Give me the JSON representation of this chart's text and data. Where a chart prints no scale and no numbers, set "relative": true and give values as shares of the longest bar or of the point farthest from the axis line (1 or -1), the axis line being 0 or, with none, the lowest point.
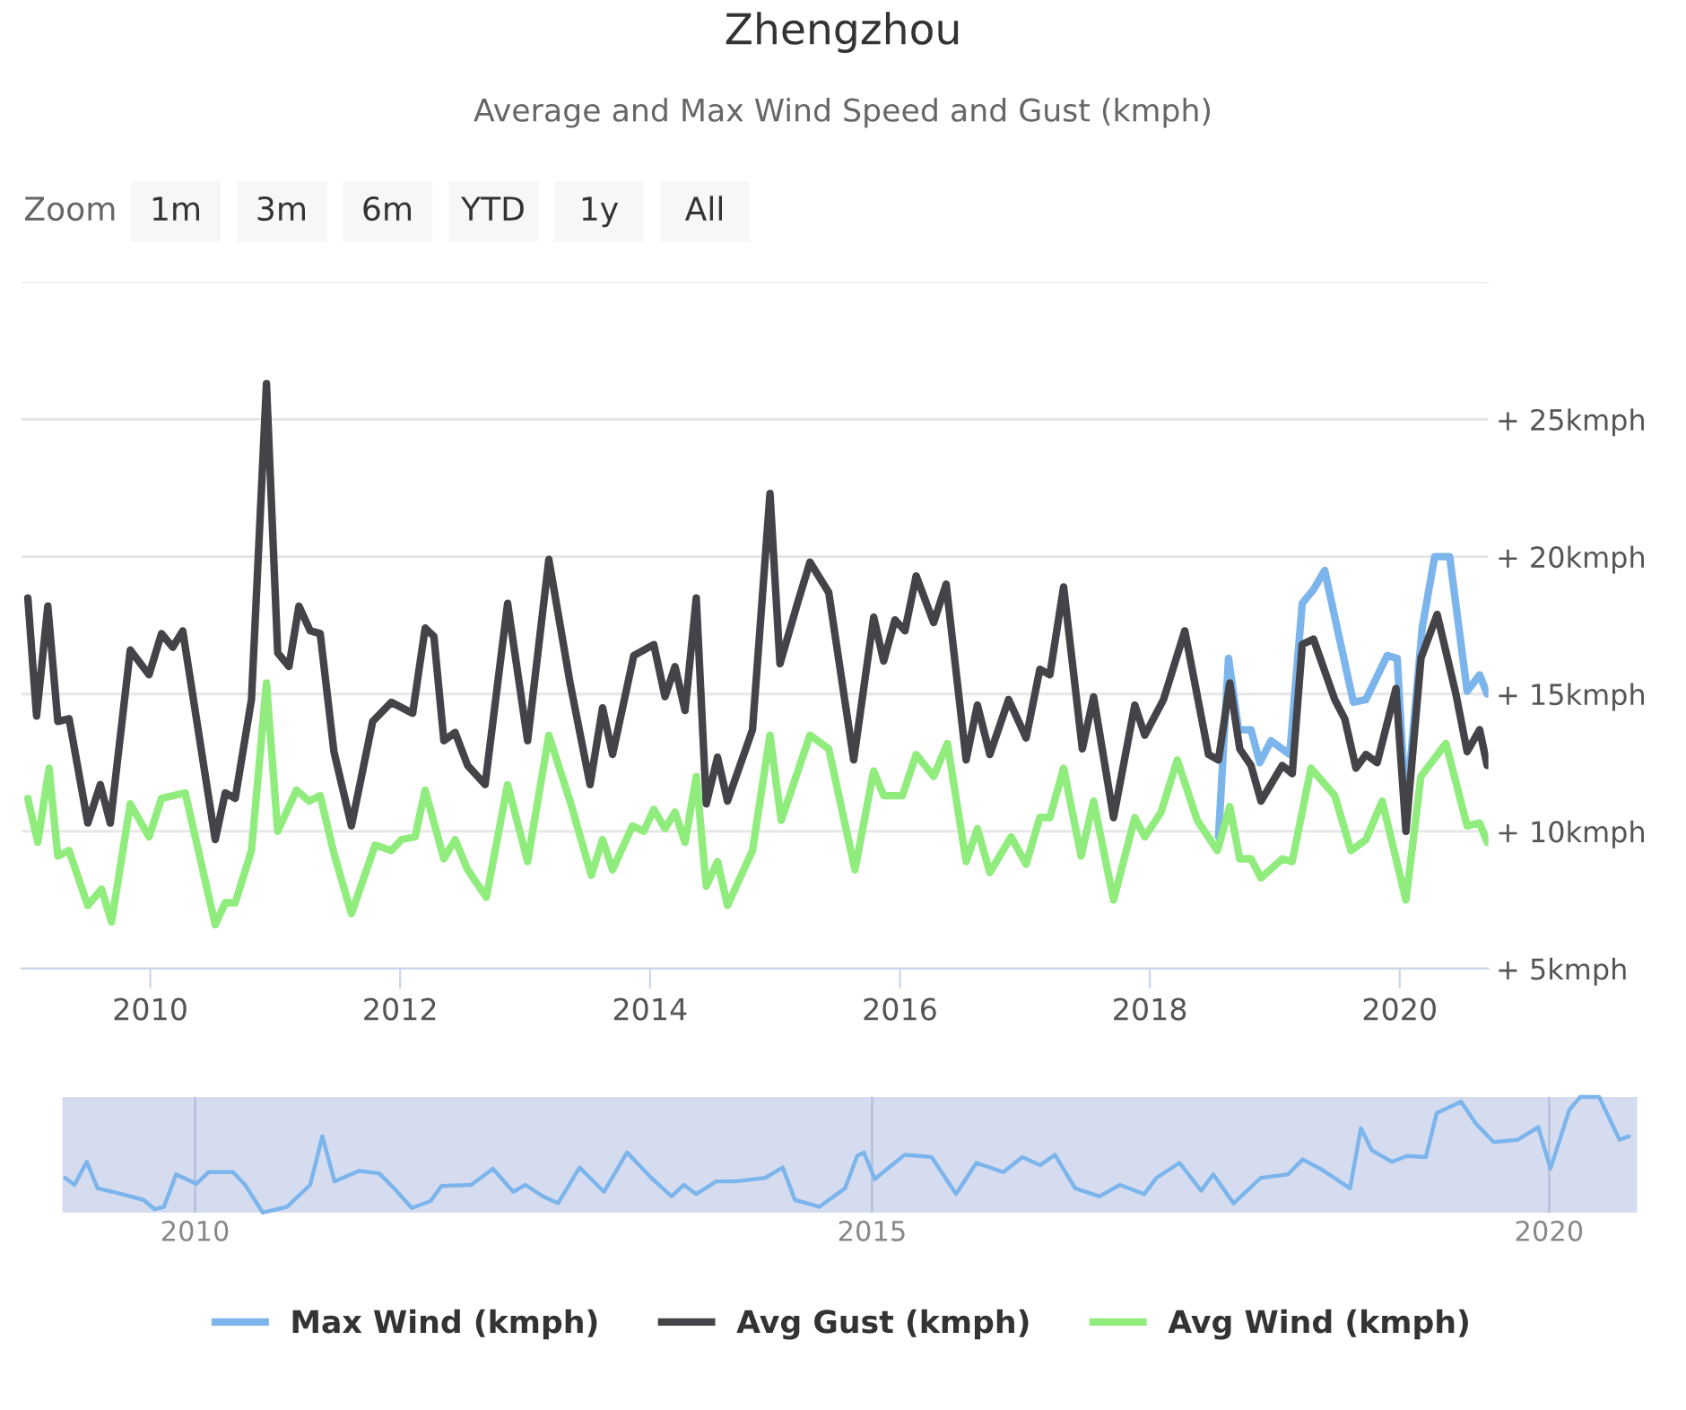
{
  "chart_data": [
    {
      "type": "line",
      "title": "Zhengzhou",
      "subtitle": "Average and Max Wind Speed and Gust (kmph)",
      "annotations": [
        "Zoom",
        "1m",
        "3m",
        "6m",
        "YTD",
        "1y",
        "All"
      ],
      "xlim": [
        2008.97,
        2020.71
      ],
      "xticks": [
        2010,
        2012,
        2014,
        2016,
        2018,
        2020
      ],
      "ylim": [
        5,
        30
      ],
      "yticks": [
        {
          "value": 5,
          "label": "+ 5kmph"
        },
        {
          "value": 10,
          "label": "+ 10kmph"
        },
        {
          "value": 15,
          "label": "+ 15kmph"
        },
        {
          "value": 20,
          "label": "+ 20kmph"
        },
        {
          "value": 25,
          "label": "+ 25kmph"
        },
        {
          "value": 30,
          "label": null
        }
      ],
      "grid": "y",
      "legend": "bottom",
      "marker": "none",
      "line_style": "solid",
      "series": [
        {
          "name": "Max Wind (kmph)",
          "color": "#7cb5ec",
          "x": [
            2018.55,
            2018.63,
            2018.71,
            2018.81,
            2018.88,
            2018.97,
            2019.12,
            2019.22,
            2019.31,
            2019.4,
            2019.48,
            2019.63,
            2019.73,
            2019.9,
            2019.98,
            2020.05,
            2020.18,
            2020.28,
            2020.4,
            2020.54,
            2020.64,
            2020.7
          ],
          "values": [
            9.8,
            16.3,
            13.7,
            13.7,
            12.5,
            13.3,
            12.8,
            18.3,
            18.8,
            19.5,
            17.8,
            14.7,
            14.8,
            16.4,
            16.3,
            10.7,
            17.4,
            20.0,
            20.0,
            15.1,
            15.7,
            15.0
          ]
        },
        {
          "name": "Avg Gust (kmph)",
          "color": "#434348",
          "x": [
            2009.02,
            2009.09,
            2009.18,
            2009.26,
            2009.35,
            2009.5,
            2009.6,
            2009.68,
            2009.84,
            2009.99,
            2010.09,
            2010.18,
            2010.26,
            2010.52,
            2010.6,
            2010.68,
            2010.81,
            2010.93,
            2011.02,
            2011.11,
            2011.19,
            2011.28,
            2011.36,
            2011.47,
            2011.61,
            2011.78,
            2011.93,
            2012.1,
            2012.2,
            2012.27,
            2012.35,
            2012.44,
            2012.54,
            2012.68,
            2012.86,
            2013.02,
            2013.19,
            2013.36,
            2013.52,
            2013.62,
            2013.7,
            2013.87,
            2014.03,
            2014.12,
            2014.2,
            2014.28,
            2014.37,
            2014.45,
            2014.54,
            2014.62,
            2014.82,
            2014.96,
            2015.04,
            2015.18,
            2015.28,
            2015.43,
            2015.63,
            2015.79,
            2015.87,
            2015.96,
            2016.04,
            2016.13,
            2016.27,
            2016.37,
            2016.53,
            2016.62,
            2016.72,
            2016.87,
            2017.01,
            2017.12,
            2017.2,
            2017.31,
            2017.46,
            2017.55,
            2017.71,
            2017.88,
            2017.96,
            2018.11,
            2018.28,
            2018.47,
            2018.55,
            2018.64,
            2018.72,
            2018.81,
            2018.89,
            2019.06,
            2019.14,
            2019.22,
            2019.31,
            2019.48,
            2019.56,
            2019.65,
            2019.73,
            2019.82,
            2019.97,
            2020.05,
            2020.17,
            2020.3,
            2020.45,
            2020.54,
            2020.64,
            2020.7
          ],
          "values": [
            18.5,
            14.2,
            18.2,
            14.0,
            14.1,
            10.3,
            11.7,
            10.3,
            16.6,
            15.7,
            17.2,
            16.7,
            17.3,
            9.7,
            11.4,
            11.2,
            14.8,
            26.3,
            16.5,
            16.0,
            18.2,
            17.3,
            17.2,
            12.9,
            10.2,
            14.0,
            14.7,
            14.3,
            17.4,
            17.1,
            13.3,
            13.6,
            12.4,
            11.7,
            18.3,
            13.3,
            19.9,
            15.4,
            11.7,
            14.5,
            12.8,
            16.4,
            16.8,
            14.9,
            16.0,
            14.4,
            18.5,
            11.0,
            12.7,
            11.1,
            13.7,
            22.3,
            16.1,
            18.3,
            19.8,
            18.7,
            12.6,
            17.8,
            16.2,
            17.7,
            17.3,
            19.3,
            17.6,
            19.0,
            12.6,
            14.6,
            12.8,
            14.8,
            13.4,
            15.9,
            15.7,
            18.9,
            13.0,
            14.9,
            10.5,
            14.6,
            13.5,
            14.8,
            17.3,
            12.8,
            12.6,
            15.4,
            13.0,
            12.4,
            11.1,
            12.4,
            12.1,
            16.8,
            17.0,
            14.8,
            14.1,
            12.3,
            12.8,
            12.5,
            15.2,
            10.0,
            16.3,
            17.9,
            15.0,
            12.9,
            13.7,
            12.4
          ]
        },
        {
          "name": "Avg Wind (kmph)",
          "color": "#90ed7d",
          "x": [
            2009.02,
            2009.1,
            2009.19,
            2009.26,
            2009.35,
            2009.5,
            2009.61,
            2009.69,
            2009.84,
            2009.99,
            2010.09,
            2010.28,
            2010.52,
            2010.6,
            2010.68,
            2010.81,
            2010.93,
            2011.02,
            2011.17,
            2011.27,
            2011.36,
            2011.47,
            2011.61,
            2011.8,
            2011.93,
            2012.01,
            2012.12,
            2012.2,
            2012.35,
            2012.44,
            2012.54,
            2012.69,
            2012.86,
            2013.02,
            2013.19,
            2013.36,
            2013.53,
            2013.62,
            2013.7,
            2013.86,
            2013.95,
            2014.03,
            2014.12,
            2014.2,
            2014.28,
            2014.37,
            2014.45,
            2014.54,
            2014.62,
            2014.82,
            2014.96,
            2015.05,
            2015.28,
            2015.43,
            2015.64,
            2015.79,
            2015.87,
            2016.02,
            2016.13,
            2016.27,
            2016.38,
            2016.53,
            2016.62,
            2016.72,
            2016.89,
            2017.01,
            2017.12,
            2017.2,
            2017.31,
            2017.45,
            2017.55,
            2017.71,
            2017.88,
            2017.96,
            2018.09,
            2018.22,
            2018.38,
            2018.54,
            2018.64,
            2018.72,
            2018.81,
            2018.89,
            2019.06,
            2019.14,
            2019.29,
            2019.48,
            2019.61,
            2019.73,
            2019.86,
            2020.05,
            2020.17,
            2020.37,
            2020.54,
            2020.64,
            2020.7
          ],
          "values": [
            11.2,
            9.6,
            12.3,
            9.1,
            9.3,
            7.3,
            7.9,
            6.7,
            11.0,
            9.8,
            11.2,
            11.4,
            6.6,
            7.4,
            7.4,
            9.3,
            15.4,
            10.0,
            11.5,
            11.1,
            11.3,
            9.2,
            7.0,
            9.5,
            9.3,
            9.7,
            9.8,
            11.5,
            9.0,
            9.7,
            8.6,
            7.6,
            11.7,
            8.9,
            13.5,
            11.1,
            8.4,
            9.7,
            8.6,
            10.2,
            10.0,
            10.8,
            10.1,
            10.7,
            9.6,
            12.0,
            8.0,
            8.9,
            7.3,
            9.3,
            13.5,
            10.4,
            13.5,
            13.0,
            8.6,
            12.2,
            11.3,
            11.3,
            12.8,
            12.0,
            13.2,
            8.9,
            10.1,
            8.5,
            9.8,
            8.8,
            10.5,
            10.5,
            12.3,
            9.1,
            11.1,
            7.5,
            10.5,
            9.8,
            10.7,
            12.6,
            10.4,
            9.3,
            10.9,
            9.0,
            9.0,
            8.3,
            9.0,
            8.9,
            12.3,
            11.3,
            9.3,
            9.7,
            11.1,
            7.5,
            12.0,
            13.2,
            10.2,
            10.3,
            9.6
          ]
        }
      ]
    },
    {
      "type": "line",
      "relative": true,
      "xlim": [
        2009.02,
        2020.65
      ],
      "xticks": [
        2010,
        2015,
        2020
      ],
      "grid": "x",
      "tick_labels": "x",
      "marker": "none",
      "series": [
        {
          "color": "#7cb5ec",
          "x": [
            2009.04,
            2009.11,
            2009.2,
            2009.28,
            2009.39,
            2009.62,
            2009.7,
            2009.77,
            2009.86,
            2010.01,
            2010.1,
            2010.28,
            2010.37,
            2010.5,
            2010.68,
            2010.85,
            2010.94,
            2011.03,
            2011.21,
            2011.36,
            2011.47,
            2011.6,
            2011.74,
            2011.82,
            2012.04,
            2012.2,
            2012.35,
            2012.44,
            2012.57,
            2012.68,
            2012.84,
            2013.02,
            2013.19,
            2013.37,
            2013.52,
            2013.61,
            2013.7,
            2013.85,
            2013.99,
            2014.21,
            2014.34,
            2014.43,
            2014.61,
            2014.8,
            2014.89,
            2014.94,
            2015.02,
            2015.24,
            2015.44,
            2015.62,
            2015.77,
            2015.97,
            2016.11,
            2016.24,
            2016.35,
            2016.5,
            2016.68,
            2016.83,
            2017.01,
            2017.1,
            2017.27,
            2017.43,
            2017.52,
            2017.67,
            2017.87,
            2018.07,
            2018.18,
            2018.31,
            2018.53,
            2018.61,
            2018.69,
            2018.84,
            2018.95,
            2019.09,
            2019.17,
            2019.35,
            2019.46,
            2019.59,
            2019.77,
            2019.92,
            2020.01,
            2020.15,
            2020.23,
            2020.37,
            2020.52,
            2020.59
          ],
          "values": [
            0.3,
            0.24,
            0.44,
            0.21,
            0.18,
            0.11,
            0.03,
            0.05,
            0.33,
            0.25,
            0.35,
            0.35,
            0.24,
            0.0,
            0.05,
            0.24,
            0.66,
            0.27,
            0.36,
            0.34,
            0.21,
            0.04,
            0.1,
            0.23,
            0.24,
            0.38,
            0.18,
            0.24,
            0.14,
            0.08,
            0.39,
            0.18,
            0.52,
            0.3,
            0.14,
            0.24,
            0.16,
            0.27,
            0.27,
            0.3,
            0.39,
            0.11,
            0.05,
            0.21,
            0.49,
            0.52,
            0.29,
            0.5,
            0.48,
            0.16,
            0.43,
            0.35,
            0.48,
            0.41,
            0.5,
            0.21,
            0.14,
            0.24,
            0.16,
            0.3,
            0.43,
            0.19,
            0.33,
            0.08,
            0.3,
            0.33,
            0.46,
            0.38,
            0.21,
            0.73,
            0.54,
            0.44,
            0.49,
            0.48,
            0.86,
            0.96,
            0.77,
            0.61,
            0.63,
            0.74,
            0.38,
            0.89,
            1.0,
            1.0,
            0.63,
            0.66
          ]
        }
      ]
    }
  ]
}
